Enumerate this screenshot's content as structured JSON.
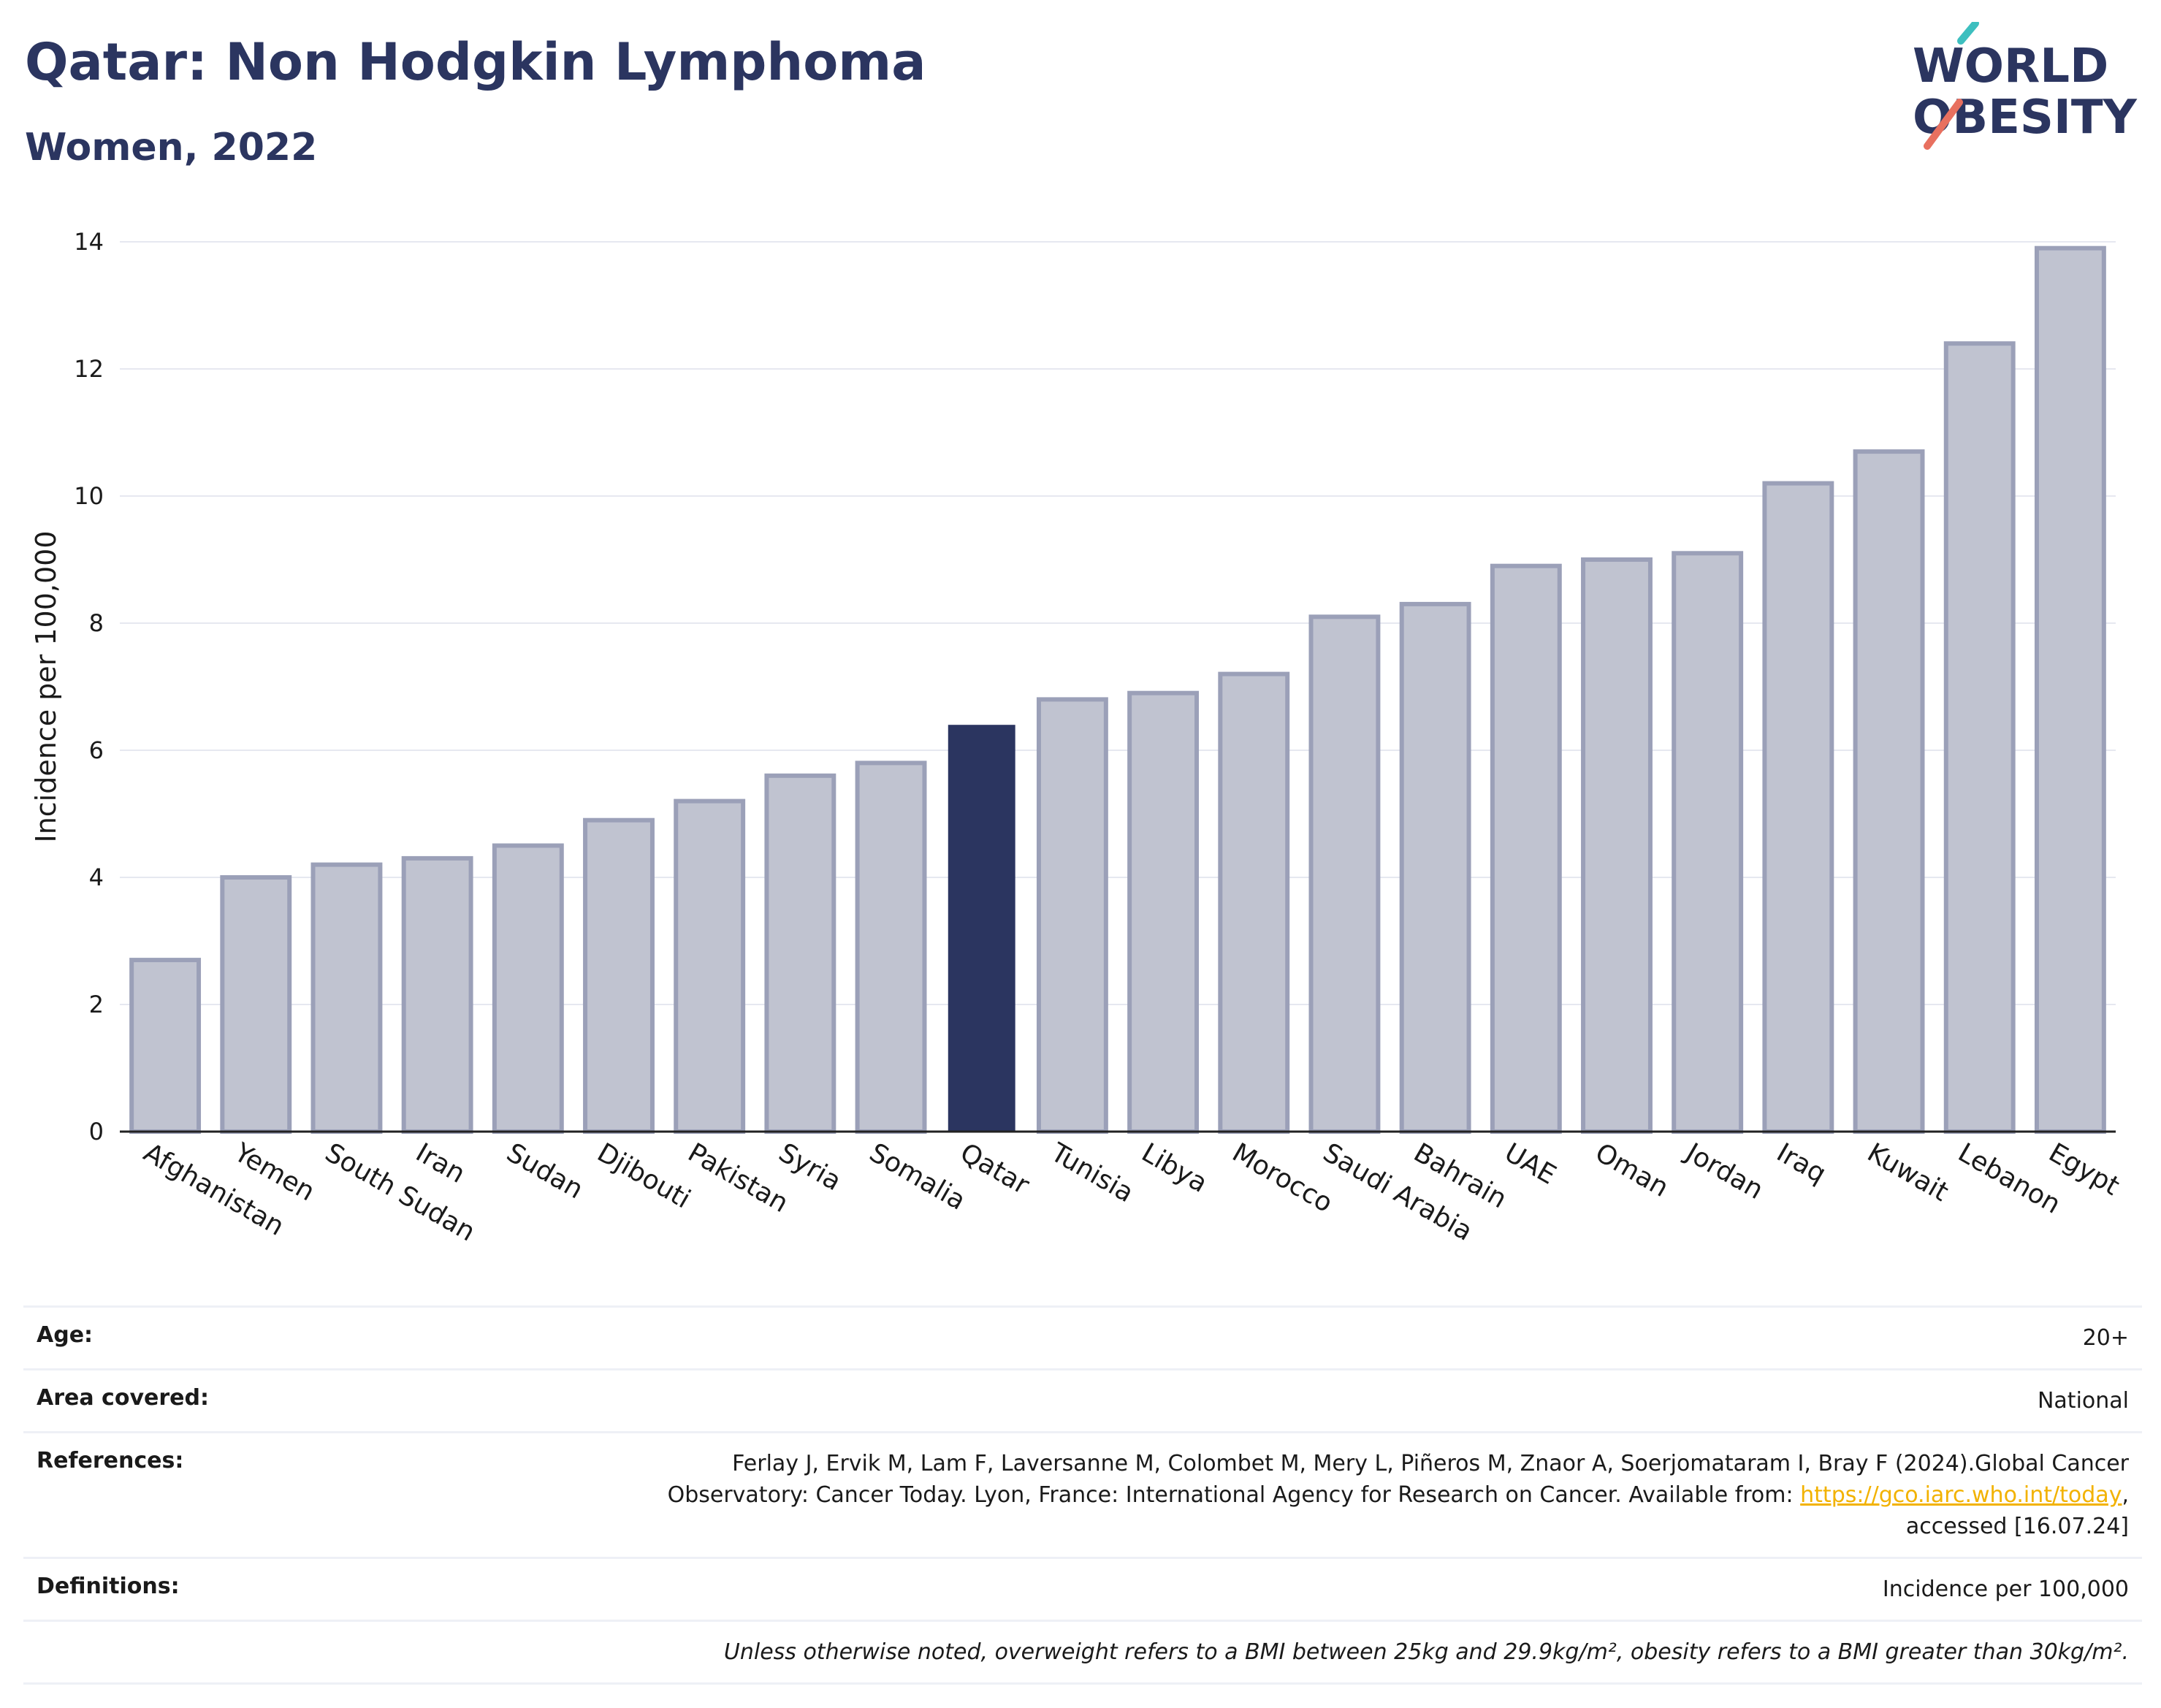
{
  "header": {
    "title": "Qatar: Non Hodgkin Lymphoma",
    "subtitle": "Women, 2022",
    "logo_line1": "WORLD",
    "logo_line2": "OBESITY"
  },
  "colors": {
    "highlight": "#2b3560",
    "bar_fill": "#c0c3d0",
    "bar_stroke": "#9ba0b8",
    "logo_teal": "#3dbfbf",
    "logo_coral": "#e8705f",
    "link": "#f2b200"
  },
  "chart_data": {
    "type": "bar",
    "categories": [
      "Afghanistan",
      "Yemen",
      "South Sudan",
      "Iran",
      "Sudan",
      "Djibouti",
      "Pakistan",
      "Syria",
      "Somalia",
      "Qatar",
      "Tunisia",
      "Libya",
      "Morocco",
      "Saudi Arabia",
      "Bahrain",
      "UAE",
      "Oman",
      "Jordan",
      "Iraq",
      "Kuwait",
      "Lebanon",
      "Egypt"
    ],
    "values": [
      2.7,
      4.0,
      4.2,
      4.3,
      4.5,
      4.9,
      5.2,
      5.6,
      5.8,
      6.4,
      6.8,
      6.9,
      7.2,
      8.1,
      8.3,
      8.9,
      9.0,
      9.1,
      10.2,
      10.7,
      12.4,
      13.9
    ],
    "highlight": "Qatar",
    "ylabel": "Incidence per 100,000",
    "ylim": [
      0,
      14
    ],
    "yticks": [
      0,
      2,
      4,
      6,
      8,
      10,
      12,
      14
    ],
    "grid": true
  },
  "info": {
    "age_label": "Age:",
    "age_value": "20+",
    "area_label": "Area covered:",
    "area_value": "National",
    "ref_label": "References:",
    "ref_text": "Ferlay J, Ervik M, Lam F, Laversanne M, Colombet M, Mery L, Piñeros M, Znaor A, Soerjomataram I, Bray F (2024).Global Cancer Observatory: Cancer Today. Lyon, France: International Agency for Research on Cancer. Available from: ",
    "ref_link": "https://gco.iarc.who.int/today",
    "ref_suffix": ", accessed [16.07.24]",
    "def_label": "Definitions:",
    "def_value": "Incidence per 100,000",
    "note": "Unless otherwise noted, overweight refers to a BMI between 25kg and 29.9kg/m², obesity refers to a BMI greater than 30kg/m²."
  }
}
